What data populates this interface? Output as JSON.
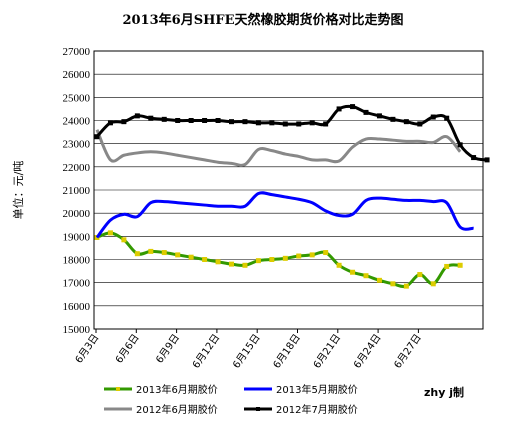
{
  "chart_data": {
    "type": "line",
    "title": "2013年6月SHFE天然橡胶期货价格对比走势图",
    "ylabel": "单位：元/吨",
    "ylim": [
      15000,
      27000
    ],
    "yticks": [
      "15000",
      "16000",
      "17000",
      "18000",
      "19000",
      "20000",
      "21000",
      "22000",
      "23000",
      "24000",
      "25000",
      "26000",
      "27000"
    ],
    "xticks": [
      "6月3日",
      "6月6日",
      "6月9日",
      "6月12日",
      "6月15日",
      "6月18日",
      "6月21日",
      "6月24日",
      "6月27日"
    ],
    "grid": "horizontal",
    "legend_position": "bottom",
    "credit": "zhy j制",
    "series": [
      {
        "name": "2013年6月期胶价",
        "color": "#339900",
        "markers": true,
        "values": [
          18950,
          19150,
          18850,
          18250,
          18350,
          18300,
          18200,
          18100,
          18000,
          17900,
          17800,
          17750,
          17950,
          18000,
          18050,
          18150,
          18200,
          18300,
          17750,
          17450,
          17300,
          17100,
          16950,
          16850,
          17350,
          16950,
          17700,
          17750
        ]
      },
      {
        "name": "2013年5月期胶价",
        "color": "#0000ff",
        "markers": false,
        "values": [
          18950,
          19700,
          19950,
          19850,
          20450,
          20500,
          20450,
          20400,
          20350,
          20300,
          20300,
          20300,
          20850,
          20800,
          20700,
          20600,
          20450,
          20100,
          19900,
          19950,
          20550,
          20650,
          20600,
          20550,
          20550,
          20500,
          20450,
          19400,
          19350
        ]
      },
      {
        "name": "2012年6月期胶价",
        "color": "#888888",
        "markers": false,
        "values": [
          23600,
          22300,
          22500,
          22600,
          22650,
          22600,
          22500,
          22400,
          22300,
          22200,
          22150,
          22100,
          22750,
          22700,
          22550,
          22450,
          22300,
          22300,
          22250,
          22850,
          23200,
          23200,
          23150,
          23100,
          23100,
          23050,
          23300,
          22650
        ]
      },
      {
        "name": "2012年7月期胶价",
        "color": "#000000",
        "markers": true,
        "values": [
          23300,
          23900,
          23950,
          24200,
          24100,
          24050,
          24000,
          24000,
          24000,
          24000,
          23950,
          23950,
          23900,
          23900,
          23850,
          23850,
          23900,
          23850,
          24500,
          24600,
          24350,
          24200,
          24050,
          23950,
          23850,
          24150,
          24100,
          22950,
          22400,
          22300
        ]
      }
    ]
  }
}
